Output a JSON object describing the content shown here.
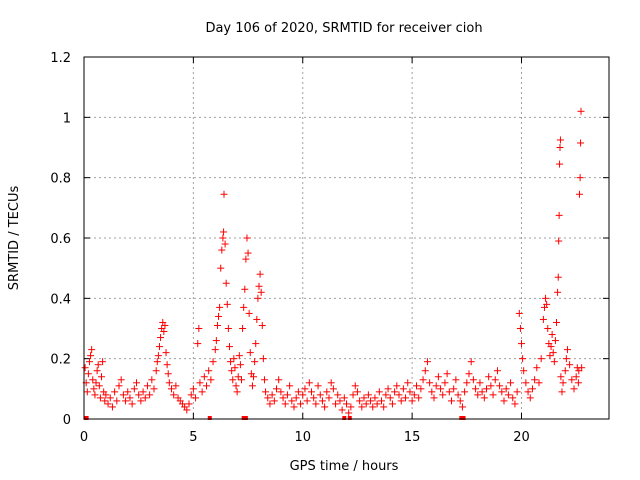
{
  "chart_data": {
    "type": "scatter",
    "title": "Day 106 of 2020, SRMTID for receiver cioh",
    "xlabel": "GPS time / hours",
    "ylabel": "SRMTID / TECUs",
    "xlim": [
      0,
      24
    ],
    "ylim": [
      0,
      1.2
    ],
    "xticks": [
      0,
      5,
      10,
      15,
      20
    ],
    "xtick_labels": [
      "0",
      "5",
      "10",
      "15",
      "20"
    ],
    "yticks": [
      0,
      0.2,
      0.4,
      0.6,
      0.8,
      1,
      1.2
    ],
    "ytick_labels": [
      "0",
      "0.2",
      "0.4",
      "0.6",
      "0.8",
      "1",
      "1.2"
    ],
    "grid": true,
    "marker": "+",
    "color": "#ff0000",
    "series": [
      {
        "name": "SRMTID",
        "points": [
          [
            0.05,
            0.17
          ],
          [
            0.1,
            0.12
          ],
          [
            0.15,
            0.09
          ],
          [
            0.2,
            0.15
          ],
          [
            0.25,
            0.19
          ],
          [
            0.3,
            0.21
          ],
          [
            0.35,
            0.23
          ],
          [
            0.4,
            0.13
          ],
          [
            0.45,
            0.1
          ],
          [
            0.5,
            0.08
          ],
          [
            0.55,
            0.12
          ],
          [
            0.6,
            0.16
          ],
          [
            0.65,
            0.18
          ],
          [
            0.7,
            0.11
          ],
          [
            0.75,
            0.07
          ],
          [
            0.8,
            0.14
          ],
          [
            0.85,
            0.19
          ],
          [
            0.9,
            0.09
          ],
          [
            0.95,
            0.06
          ],
          [
            1.0,
            0.08
          ],
          [
            1.1,
            0.05
          ],
          [
            1.2,
            0.07
          ],
          [
            1.3,
            0.04
          ],
          [
            1.4,
            0.09
          ],
          [
            1.5,
            0.06
          ],
          [
            1.6,
            0.11
          ],
          [
            1.7,
            0.13
          ],
          [
            1.8,
            0.08
          ],
          [
            1.9,
            0.06
          ],
          [
            2.0,
            0.09
          ],
          [
            2.1,
            0.07
          ],
          [
            2.2,
            0.05
          ],
          [
            2.3,
            0.1
          ],
          [
            2.4,
            0.12
          ],
          [
            2.5,
            0.08
          ],
          [
            2.6,
            0.06
          ],
          [
            2.7,
            0.09
          ],
          [
            2.8,
            0.07
          ],
          [
            2.9,
            0.11
          ],
          [
            3.0,
            0.08
          ],
          [
            3.1,
            0.13
          ],
          [
            3.2,
            0.1
          ],
          [
            3.3,
            0.16
          ],
          [
            3.35,
            0.19
          ],
          [
            3.4,
            0.21
          ],
          [
            3.45,
            0.24
          ],
          [
            3.5,
            0.27
          ],
          [
            3.55,
            0.3
          ],
          [
            3.6,
            0.32
          ],
          [
            3.65,
            0.29
          ],
          [
            3.7,
            0.31
          ],
          [
            3.75,
            0.22
          ],
          [
            3.8,
            0.18
          ],
          [
            3.85,
            0.15
          ],
          [
            3.9,
            0.12
          ],
          [
            4.0,
            0.1
          ],
          [
            4.1,
            0.08
          ],
          [
            4.2,
            0.11
          ],
          [
            4.3,
            0.07
          ],
          [
            4.4,
            0.06
          ],
          [
            4.5,
            0.05
          ],
          [
            4.6,
            0.04
          ],
          [
            4.7,
            0.03
          ],
          [
            4.8,
            0.05
          ],
          [
            4.9,
            0.08
          ],
          [
            5.0,
            0.1
          ],
          [
            5.1,
            0.07
          ],
          [
            5.2,
            0.25
          ],
          [
            5.25,
            0.3
          ],
          [
            5.3,
            0.12
          ],
          [
            5.4,
            0.09
          ],
          [
            5.5,
            0.14
          ],
          [
            5.6,
            0.11
          ],
          [
            5.7,
            0.16
          ],
          [
            5.8,
            0.13
          ],
          [
            5.9,
            0.19
          ],
          [
            6.0,
            0.23
          ],
          [
            6.05,
            0.26
          ],
          [
            6.1,
            0.31
          ],
          [
            6.15,
            0.34
          ],
          [
            6.2,
            0.37
          ],
          [
            6.25,
            0.5
          ],
          [
            6.3,
            0.56
          ],
          [
            6.35,
            0.6
          ],
          [
            6.38,
            0.62
          ],
          [
            6.4,
            0.745
          ],
          [
            6.45,
            0.58
          ],
          [
            6.5,
            0.45
          ],
          [
            6.55,
            0.38
          ],
          [
            6.6,
            0.3
          ],
          [
            6.65,
            0.24
          ],
          [
            6.7,
            0.19
          ],
          [
            6.75,
            0.16
          ],
          [
            6.8,
            0.13
          ],
          [
            6.85,
            0.2
          ],
          [
            6.9,
            0.17
          ],
          [
            6.95,
            0.11
          ],
          [
            7.0,
            0.09
          ],
          [
            7.05,
            0.14
          ],
          [
            7.1,
            0.21
          ],
          [
            7.15,
            0.18
          ],
          [
            7.2,
            0.13
          ],
          [
            7.25,
            0.3
          ],
          [
            7.3,
            0.37
          ],
          [
            7.35,
            0.43
          ],
          [
            7.4,
            0.53
          ],
          [
            7.45,
            0.6
          ],
          [
            7.5,
            0.55
          ],
          [
            7.55,
            0.35
          ],
          [
            7.6,
            0.22
          ],
          [
            7.65,
            0.15
          ],
          [
            7.7,
            0.11
          ],
          [
            7.75,
            0.14
          ],
          [
            7.8,
            0.19
          ],
          [
            7.85,
            0.25
          ],
          [
            7.9,
            0.33
          ],
          [
            7.95,
            0.4
          ],
          [
            8.0,
            0.44
          ],
          [
            8.05,
            0.48
          ],
          [
            8.1,
            0.42
          ],
          [
            8.15,
            0.31
          ],
          [
            8.2,
            0.2
          ],
          [
            8.25,
            0.13
          ],
          [
            8.3,
            0.09
          ],
          [
            8.4,
            0.07
          ],
          [
            8.5,
            0.05
          ],
          [
            8.6,
            0.08
          ],
          [
            8.7,
            0.06
          ],
          [
            8.8,
            0.1
          ],
          [
            8.9,
            0.13
          ],
          [
            9.0,
            0.09
          ],
          [
            9.1,
            0.07
          ],
          [
            9.2,
            0.05
          ],
          [
            9.3,
            0.08
          ],
          [
            9.4,
            0.11
          ],
          [
            9.5,
            0.06
          ],
          [
            9.6,
            0.04
          ],
          [
            9.7,
            0.07
          ],
          [
            9.8,
            0.09
          ],
          [
            9.9,
            0.05
          ],
          [
            10.0,
            0.08
          ],
          [
            10.1,
            0.1
          ],
          [
            10.2,
            0.06
          ],
          [
            10.3,
            0.12
          ],
          [
            10.4,
            0.09
          ],
          [
            10.5,
            0.07
          ],
          [
            10.6,
            0.05
          ],
          [
            10.7,
            0.11
          ],
          [
            10.8,
            0.08
          ],
          [
            10.9,
            0.06
          ],
          [
            11.0,
            0.04
          ],
          [
            11.1,
            0.09
          ],
          [
            11.2,
            0.07
          ],
          [
            11.3,
            0.12
          ],
          [
            11.4,
            0.1
          ],
          [
            11.5,
            0.05
          ],
          [
            11.6,
            0.08
          ],
          [
            11.7,
            0.06
          ],
          [
            11.8,
            0.03
          ],
          [
            11.9,
            0.07
          ],
          [
            12.0,
            0.05
          ],
          [
            12.1,
            0.02
          ],
          [
            12.2,
            0.04
          ],
          [
            12.3,
            0.08
          ],
          [
            12.4,
            0.11
          ],
          [
            12.5,
            0.09
          ],
          [
            12.6,
            0.06
          ],
          [
            12.7,
            0.04
          ],
          [
            12.8,
            0.07
          ],
          [
            12.9,
            0.05
          ],
          [
            13.0,
            0.08
          ],
          [
            13.1,
            0.06
          ],
          [
            13.2,
            0.04
          ],
          [
            13.3,
            0.07
          ],
          [
            13.4,
            0.05
          ],
          [
            13.5,
            0.09
          ],
          [
            13.6,
            0.06
          ],
          [
            13.7,
            0.04
          ],
          [
            13.8,
            0.08
          ],
          [
            13.9,
            0.1
          ],
          [
            14.0,
            0.07
          ],
          [
            14.1,
            0.05
          ],
          [
            14.2,
            0.09
          ],
          [
            14.3,
            0.11
          ],
          [
            14.4,
            0.08
          ],
          [
            14.5,
            0.06
          ],
          [
            14.6,
            0.1
          ],
          [
            14.7,
            0.07
          ],
          [
            14.8,
            0.12
          ],
          [
            14.9,
            0.09
          ],
          [
            15.0,
            0.06
          ],
          [
            15.1,
            0.08
          ],
          [
            15.2,
            0.11
          ],
          [
            15.3,
            0.07
          ],
          [
            15.4,
            0.1
          ],
          [
            15.5,
            0.13
          ],
          [
            15.6,
            0.16
          ],
          [
            15.7,
            0.19
          ],
          [
            15.8,
            0.12
          ],
          [
            15.9,
            0.09
          ],
          [
            16.0,
            0.07
          ],
          [
            16.1,
            0.11
          ],
          [
            16.2,
            0.14
          ],
          [
            16.3,
            0.1
          ],
          [
            16.4,
            0.08
          ],
          [
            16.5,
            0.12
          ],
          [
            16.6,
            0.15
          ],
          [
            16.7,
            0.09
          ],
          [
            16.8,
            0.06
          ],
          [
            16.9,
            0.1
          ],
          [
            17.0,
            0.13
          ],
          [
            17.1,
            0.08
          ],
          [
            17.2,
            0.06
          ],
          [
            17.3,
            0.04
          ],
          [
            17.4,
            0.09
          ],
          [
            17.5,
            0.12
          ],
          [
            17.6,
            0.15
          ],
          [
            17.7,
            0.19
          ],
          [
            17.8,
            0.13
          ],
          [
            17.9,
            0.1
          ],
          [
            18.0,
            0.08
          ],
          [
            18.1,
            0.12
          ],
          [
            18.2,
            0.09
          ],
          [
            18.3,
            0.07
          ],
          [
            18.4,
            0.1
          ],
          [
            18.5,
            0.14
          ],
          [
            18.6,
            0.11
          ],
          [
            18.7,
            0.08
          ],
          [
            18.8,
            0.13
          ],
          [
            18.9,
            0.16
          ],
          [
            19.0,
            0.11
          ],
          [
            19.1,
            0.09
          ],
          [
            19.2,
            0.06
          ],
          [
            19.3,
            0.1
          ],
          [
            19.4,
            0.08
          ],
          [
            19.5,
            0.12
          ],
          [
            19.6,
            0.07
          ],
          [
            19.7,
            0.05
          ],
          [
            19.8,
            0.09
          ],
          [
            19.9,
            0.35
          ],
          [
            19.95,
            0.3
          ],
          [
            20.0,
            0.25
          ],
          [
            20.05,
            0.2
          ],
          [
            20.1,
            0.16
          ],
          [
            20.2,
            0.12
          ],
          [
            20.3,
            0.09
          ],
          [
            20.4,
            0.07
          ],
          [
            20.5,
            0.1
          ],
          [
            20.6,
            0.13
          ],
          [
            20.7,
            0.17
          ],
          [
            20.8,
            0.12
          ],
          [
            20.9,
            0.2
          ],
          [
            21.0,
            0.33
          ],
          [
            21.05,
            0.37
          ],
          [
            21.1,
            0.4
          ],
          [
            21.15,
            0.38
          ],
          [
            21.2,
            0.3
          ],
          [
            21.25,
            0.25
          ],
          [
            21.3,
            0.21
          ],
          [
            21.35,
            0.24
          ],
          [
            21.4,
            0.28
          ],
          [
            21.45,
            0.22
          ],
          [
            21.5,
            0.19
          ],
          [
            21.55,
            0.26
          ],
          [
            21.6,
            0.32
          ],
          [
            21.65,
            0.42
          ],
          [
            21.68,
            0.47
          ],
          [
            21.7,
            0.59
          ],
          [
            21.72,
            0.675
          ],
          [
            21.74,
            0.845
          ],
          [
            21.76,
            0.9
          ],
          [
            21.78,
            0.925
          ],
          [
            21.8,
            0.14
          ],
          [
            21.85,
            0.09
          ],
          [
            21.9,
            0.12
          ],
          [
            22.0,
            0.16
          ],
          [
            22.05,
            0.2
          ],
          [
            22.1,
            0.23
          ],
          [
            22.2,
            0.18
          ],
          [
            22.3,
            0.13
          ],
          [
            22.4,
            0.1
          ],
          [
            22.5,
            0.14
          ],
          [
            22.55,
            0.17
          ],
          [
            22.6,
            0.12
          ],
          [
            22.62,
            0.16
          ],
          [
            22.65,
            0.745
          ],
          [
            22.68,
            0.8
          ],
          [
            22.7,
            0.915
          ],
          [
            22.72,
            1.02
          ],
          [
            22.75,
            0.17
          ]
        ]
      }
    ],
    "baseline_marks_x": [
      0.08,
      0.12,
      5.75,
      7.3,
      7.4,
      11.9,
      12.15,
      17.25,
      17.35
    ]
  }
}
